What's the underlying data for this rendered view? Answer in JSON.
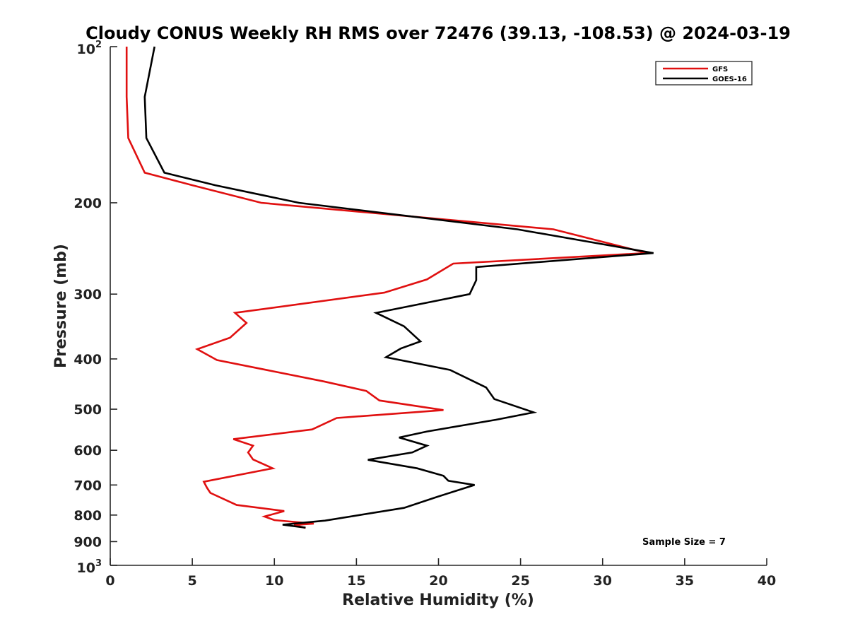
{
  "chart_data": {
    "type": "line",
    "title": "Cloudy CONUS Weekly RH RMS over 72476 (39.13, -108.53) @ 2024-03-19",
    "xlabel": "Relative Humidity (%)",
    "ylabel": "Pressure (mb)",
    "xlim": [
      0,
      40
    ],
    "ylim": [
      100,
      1000
    ],
    "y_scale": "log",
    "y_reversed": true,
    "x_ticks": [
      "0",
      "5",
      "10",
      "15",
      "20",
      "25",
      "30",
      "35",
      "40"
    ],
    "y_ticks": [
      {
        "value": 100,
        "base": "10",
        "exp": "2"
      },
      {
        "value": 200,
        "label": "200"
      },
      {
        "value": 300,
        "label": "300"
      },
      {
        "value": 400,
        "label": "400"
      },
      {
        "value": 500,
        "label": "500"
      },
      {
        "value": 600,
        "label": "600"
      },
      {
        "value": 700,
        "label": "700"
      },
      {
        "value": 800,
        "label": "800"
      },
      {
        "value": 900,
        "label": "900"
      },
      {
        "value": 1000,
        "base": "10",
        "exp": "3"
      }
    ],
    "legend_position": "top-right",
    "annotation": "Sample Size = 7",
    "series": [
      {
        "name": "GFS",
        "color": "#e01010",
        "points": [
          [
            1.0,
            100
          ],
          [
            1.0,
            125
          ],
          [
            1.1,
            150
          ],
          [
            2.1,
            175
          ],
          [
            5.0,
            185
          ],
          [
            9.2,
            200
          ],
          [
            27.0,
            225
          ],
          [
            32.7,
            250
          ],
          [
            20.9,
            262
          ],
          [
            19.3,
            281
          ],
          [
            16.7,
            298
          ],
          [
            7.6,
            326
          ],
          [
            8.3,
            341
          ],
          [
            7.3,
            364
          ],
          [
            5.3,
            383
          ],
          [
            6.5,
            402
          ],
          [
            13.0,
            442
          ],
          [
            15.6,
            461
          ],
          [
            16.4,
            481
          ],
          [
            20.3,
            502
          ],
          [
            13.8,
            520
          ],
          [
            12.3,
            547
          ],
          [
            7.5,
            571
          ],
          [
            8.7,
            588
          ],
          [
            8.4,
            606
          ],
          [
            8.7,
            625
          ],
          [
            9.9,
            650
          ],
          [
            5.7,
            690
          ],
          [
            5.9,
            709
          ],
          [
            6.1,
            725
          ],
          [
            7.7,
            765
          ],
          [
            10.6,
            786
          ],
          [
            9.4,
            805
          ],
          [
            10.0,
            818
          ],
          [
            12.4,
            831
          ],
          [
            11.2,
            836
          ],
          [
            11.9,
            847
          ]
        ]
      },
      {
        "name": "GOES-16",
        "color": "#000000",
        "points": [
          [
            2.7,
            100
          ],
          [
            2.1,
            125
          ],
          [
            2.2,
            150
          ],
          [
            3.3,
            175
          ],
          [
            6.4,
            185
          ],
          [
            11.5,
            200
          ],
          [
            24.8,
            225
          ],
          [
            33.1,
            250
          ],
          [
            22.3,
            266
          ],
          [
            22.3,
            282
          ],
          [
            21.9,
            300
          ],
          [
            16.2,
            326
          ],
          [
            17.9,
            346
          ],
          [
            18.9,
            370
          ],
          [
            17.7,
            382
          ],
          [
            16.8,
            397
          ],
          [
            20.7,
            420
          ],
          [
            22.9,
            454
          ],
          [
            23.4,
            478
          ],
          [
            25.8,
            507
          ],
          [
            23.5,
            524
          ],
          [
            19.3,
            552
          ],
          [
            17.6,
            567
          ],
          [
            19.3,
            588
          ],
          [
            18.4,
            606
          ],
          [
            15.7,
            626
          ],
          [
            18.7,
            650
          ],
          [
            20.3,
            672
          ],
          [
            20.6,
            687
          ],
          [
            22.2,
            700
          ],
          [
            19.9,
            738
          ],
          [
            17.9,
            775
          ],
          [
            13.1,
            820
          ],
          [
            10.5,
            835
          ],
          [
            11.9,
            846
          ]
        ]
      }
    ]
  }
}
